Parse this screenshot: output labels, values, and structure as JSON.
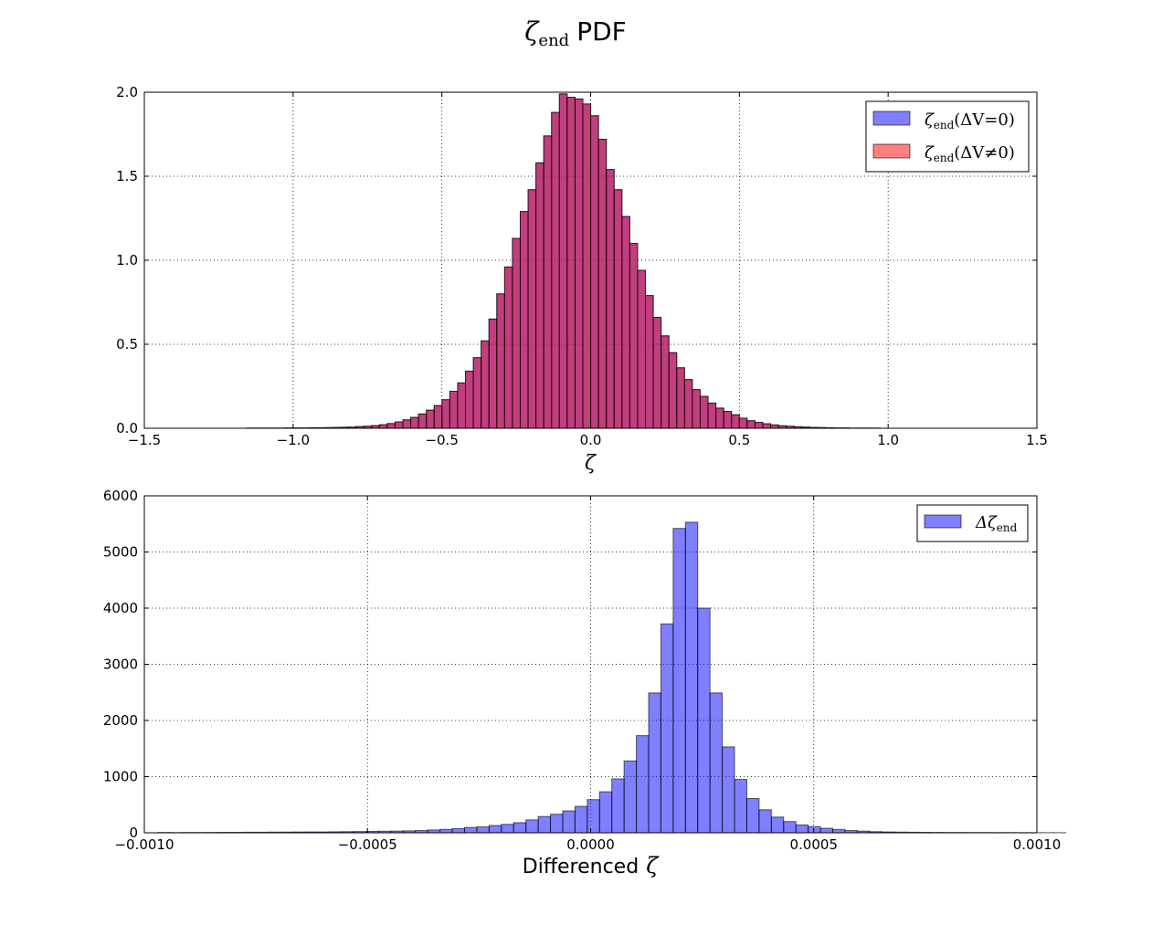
{
  "figure": {
    "title_symbol": "ζ",
    "title_subscript": "end",
    "title_text": "PDF"
  },
  "chart_data": [
    {
      "type": "bar",
      "histogram": true,
      "xlabel": "ζ",
      "xlim": [
        -1.5,
        1.5
      ],
      "ylim": [
        0,
        2.0
      ],
      "xticks": [
        -1.5,
        -1.0,
        -0.5,
        0.0,
        0.5,
        1.0,
        1.5
      ],
      "xtick_labels": [
        "−1.5",
        "−1.0",
        "−0.5",
        "0.0",
        "0.5",
        "1.0",
        "1.5"
      ],
      "yticks": [
        0,
        0.5,
        1.0,
        1.5,
        2.0
      ],
      "ytick_labels": [
        "0.0",
        "0.5",
        "1.0",
        "1.5",
        "2.0"
      ],
      "grid": true,
      "legend_position": "top-right",
      "bin_start": -1.42,
      "bin_width": 0.0263,
      "series": [
        {
          "name": "ζend(ΔV=0)",
          "legend_symbol": "ζ",
          "legend_sub": "end",
          "legend_rest": "(ΔV=0)",
          "color": "#0000ff",
          "values": [
            0.0,
            0.0,
            0.0,
            0.0,
            0.0,
            0.0,
            0.0,
            0.0,
            0.0,
            0.0,
            0.001,
            0.001,
            0.001,
            0.001,
            0.001,
            0.002,
            0.002,
            0.002,
            0.003,
            0.003,
            0.004,
            0.005,
            0.006,
            0.007,
            0.01,
            0.012,
            0.016,
            0.021,
            0.028,
            0.038,
            0.05,
            0.065,
            0.085,
            0.108,
            0.135,
            0.17,
            0.22,
            0.27,
            0.34,
            0.42,
            0.52,
            0.65,
            0.8,
            0.96,
            1.13,
            1.29,
            1.42,
            1.58,
            1.74,
            1.88,
            1.99,
            1.97,
            1.96,
            1.93,
            1.86,
            1.72,
            1.54,
            1.42,
            1.26,
            1.1,
            0.94,
            0.79,
            0.66,
            0.55,
            0.45,
            0.36,
            0.29,
            0.23,
            0.19,
            0.15,
            0.12,
            0.1,
            0.08,
            0.06,
            0.045,
            0.035,
            0.027,
            0.02,
            0.015,
            0.012,
            0.009,
            0.007,
            0.005,
            0.004,
            0.003,
            0.002,
            0.002,
            0.001,
            0.001,
            0.001,
            0.001,
            0.0,
            0.0,
            0.0,
            0.0,
            0.0,
            0.0,
            0.0,
            0.0,
            0.0,
            0.0,
            0.0,
            0.0,
            0.0,
            0.0,
            0.0,
            0.0,
            0.0
          ]
        },
        {
          "name": "ζend(ΔV≠0)",
          "legend_symbol": "ζ",
          "legend_sub": "end",
          "legend_rest": "(ΔV≠0)",
          "color": "#ff0000",
          "values": [
            0.0,
            0.0,
            0.0,
            0.0,
            0.0,
            0.0,
            0.0,
            0.0,
            0.0,
            0.0,
            0.001,
            0.001,
            0.001,
            0.001,
            0.001,
            0.002,
            0.002,
            0.002,
            0.003,
            0.003,
            0.004,
            0.005,
            0.006,
            0.007,
            0.01,
            0.012,
            0.016,
            0.021,
            0.028,
            0.038,
            0.05,
            0.065,
            0.085,
            0.108,
            0.135,
            0.17,
            0.22,
            0.27,
            0.34,
            0.42,
            0.52,
            0.65,
            0.8,
            0.96,
            1.13,
            1.29,
            1.42,
            1.58,
            1.74,
            1.88,
            1.99,
            1.97,
            1.96,
            1.93,
            1.86,
            1.72,
            1.54,
            1.42,
            1.26,
            1.1,
            0.94,
            0.79,
            0.66,
            0.55,
            0.45,
            0.36,
            0.29,
            0.23,
            0.19,
            0.15,
            0.12,
            0.1,
            0.08,
            0.06,
            0.045,
            0.035,
            0.027,
            0.02,
            0.015,
            0.012,
            0.009,
            0.007,
            0.005,
            0.004,
            0.003,
            0.002,
            0.002,
            0.001,
            0.001,
            0.001,
            0.001,
            0.0,
            0.0,
            0.0,
            0.0,
            0.0,
            0.0,
            0.0,
            0.0,
            0.0,
            0.0,
            0.0,
            0.0,
            0.0,
            0.0,
            0.0,
            0.0,
            0.0
          ]
        }
      ]
    },
    {
      "type": "bar",
      "histogram": true,
      "xlabel": "Differenced ζ",
      "xlabel_text": "Differenced",
      "xlabel_symbol": "ζ",
      "xlim": [
        -0.001,
        0.001
      ],
      "ylim": [
        0,
        6000
      ],
      "xticks": [
        -0.001,
        -0.0005,
        0.0,
        0.0005,
        0.001
      ],
      "xtick_labels": [
        "−0.0010",
        "−0.0005",
        "0.0000",
        "0.0005",
        "0.0010"
      ],
      "yticks": [
        0,
        1000,
        2000,
        3000,
        4000,
        5000,
        6000
      ],
      "ytick_labels": [
        "0",
        "1000",
        "2000",
        "3000",
        "4000",
        "5000",
        "6000"
      ],
      "grid": true,
      "legend_position": "top-right",
      "bin_start": -0.00097,
      "bin_width": 2.75e-05,
      "series": [
        {
          "name": "Δζend",
          "legend_symbol": "Δζ",
          "legend_sub": "end",
          "legend_rest": "",
          "color": "#0000ff",
          "values": [
            5,
            3,
            5,
            5,
            6,
            8,
            8,
            10,
            10,
            12,
            12,
            14,
            15,
            15,
            18,
            20,
            22,
            25,
            28,
            30,
            35,
            40,
            50,
            60,
            75,
            95,
            105,
            130,
            150,
            180,
            230,
            290,
            330,
            390,
            470,
            590,
            730,
            960,
            1280,
            1730,
            2490,
            3720,
            5420,
            5530,
            4000,
            2490,
            1530,
            950,
            610,
            410,
            280,
            200,
            140,
            110,
            80,
            60,
            40,
            30,
            20,
            15,
            12,
            10,
            8,
            6,
            5,
            5,
            4,
            4,
            3,
            3,
            2,
            2,
            2,
            2
          ]
        }
      ]
    }
  ]
}
